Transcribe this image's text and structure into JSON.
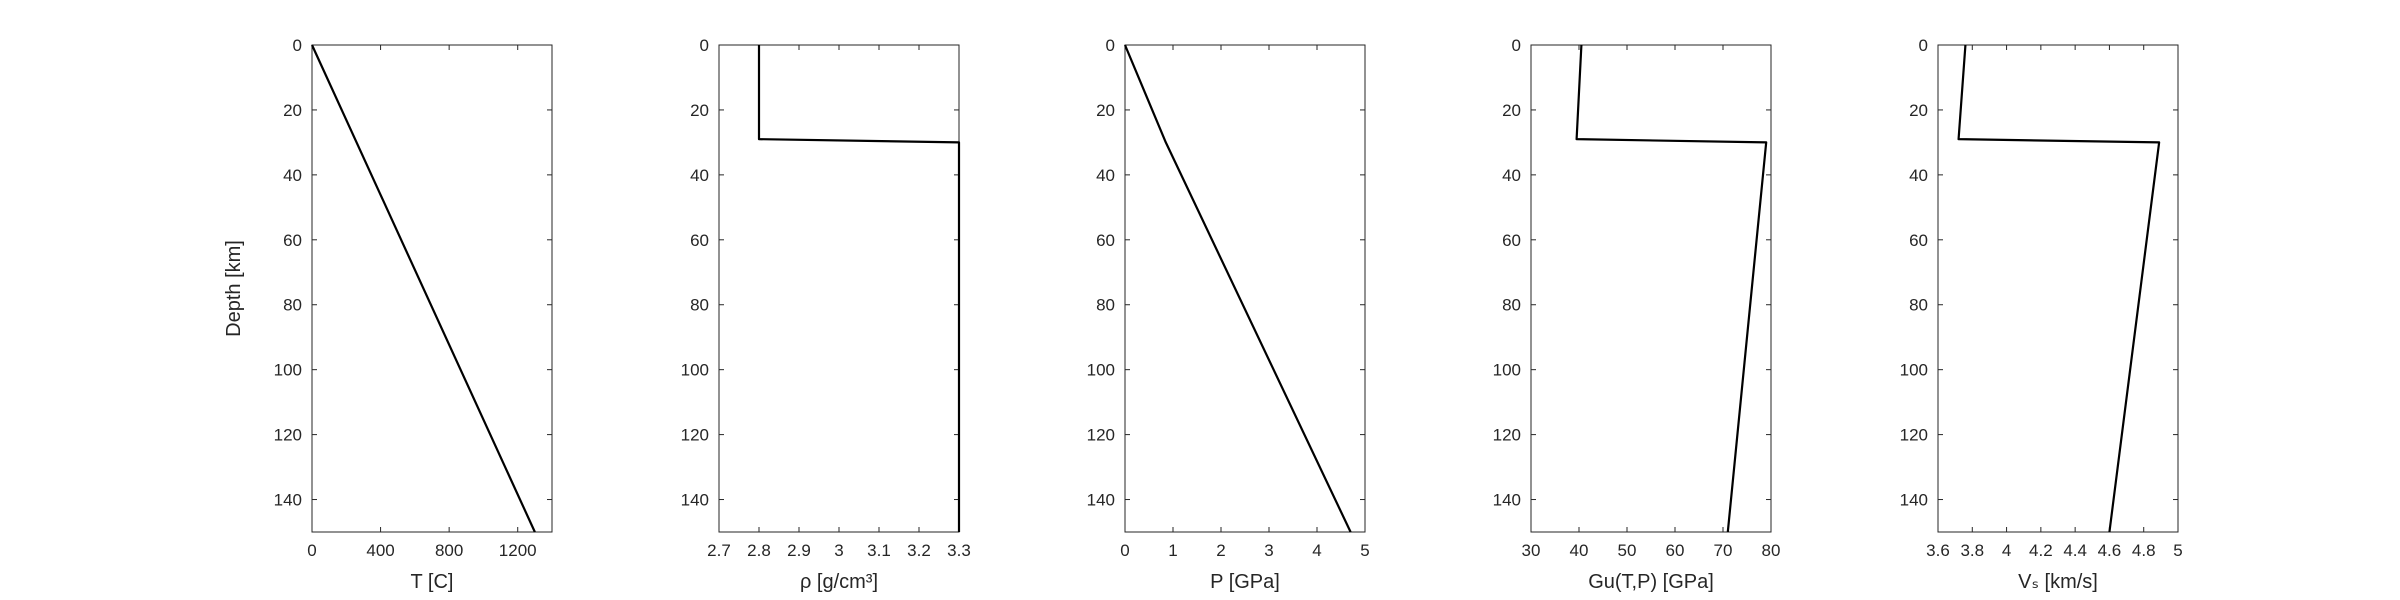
{
  "chart_data": [
    {
      "type": "line",
      "xlabel": "T [C]",
      "ylabel": "Depth [km]",
      "xlim": [
        0,
        1400
      ],
      "ylim": [
        0,
        150
      ],
      "y_reversed": true,
      "xticks": [
        "0",
        "400",
        "800",
        "1200"
      ],
      "yticks": [
        "0",
        "20",
        "40",
        "60",
        "80",
        "100",
        "120",
        "140"
      ],
      "grid": false,
      "line_color": "#000000",
      "series": [
        {
          "x": [
            0,
            1300
          ],
          "y": [
            0,
            150
          ]
        }
      ]
    },
    {
      "type": "line",
      "xlabel": "ρ [g/cm³]",
      "xlim": [
        2.7,
        3.3
      ],
      "ylim": [
        0,
        150
      ],
      "y_reversed": true,
      "xticks": [
        "2.7",
        "2.8",
        "2.9",
        "3",
        "3.1",
        "3.2",
        "3.3"
      ],
      "yticks": [
        "0",
        "20",
        "40",
        "60",
        "80",
        "100",
        "120",
        "140"
      ],
      "grid": false,
      "line_color": "#000000",
      "series": [
        {
          "x": [
            2.8,
            2.8,
            3.3,
            3.3
          ],
          "y": [
            0,
            29,
            30,
            150
          ]
        }
      ]
    },
    {
      "type": "line",
      "xlabel": "P [GPa]",
      "xlim": [
        0,
        5
      ],
      "ylim": [
        0,
        150
      ],
      "y_reversed": true,
      "xticks": [
        "0",
        "1",
        "2",
        "3",
        "4",
        "5"
      ],
      "yticks": [
        "0",
        "20",
        "40",
        "60",
        "80",
        "100",
        "120",
        "140"
      ],
      "grid": false,
      "line_color": "#000000",
      "series": [
        {
          "x": [
            0,
            0.85,
            4.7
          ],
          "y": [
            0,
            30,
            150
          ]
        }
      ]
    },
    {
      "type": "line",
      "xlabel": "Gu(T,P) [GPa]",
      "xlim": [
        30,
        80
      ],
      "ylim": [
        0,
        150
      ],
      "y_reversed": true,
      "xticks": [
        "30",
        "40",
        "50",
        "60",
        "70",
        "80"
      ],
      "yticks": [
        "0",
        "20",
        "40",
        "60",
        "80",
        "100",
        "120",
        "140"
      ],
      "grid": false,
      "line_color": "#000000",
      "series": [
        {
          "x": [
            40.5,
            39.5,
            79,
            71
          ],
          "y": [
            0,
            29,
            30,
            150
          ]
        }
      ]
    },
    {
      "type": "line",
      "xlabel": "Vₛ [km/s]",
      "xlim": [
        3.6,
        5
      ],
      "ylim": [
        0,
        150
      ],
      "y_reversed": true,
      "xticks": [
        "3.6",
        "3.8",
        "4",
        "4.2",
        "4.4",
        "4.6",
        "4.8",
        "5"
      ],
      "yticks": [
        "0",
        "20",
        "40",
        "60",
        "80",
        "100",
        "120",
        "140"
      ],
      "grid": false,
      "line_color": "#000000",
      "series": [
        {
          "x": [
            3.76,
            3.72,
            4.89,
            4.6
          ],
          "y": [
            0,
            29,
            30,
            150
          ]
        }
      ]
    }
  ]
}
